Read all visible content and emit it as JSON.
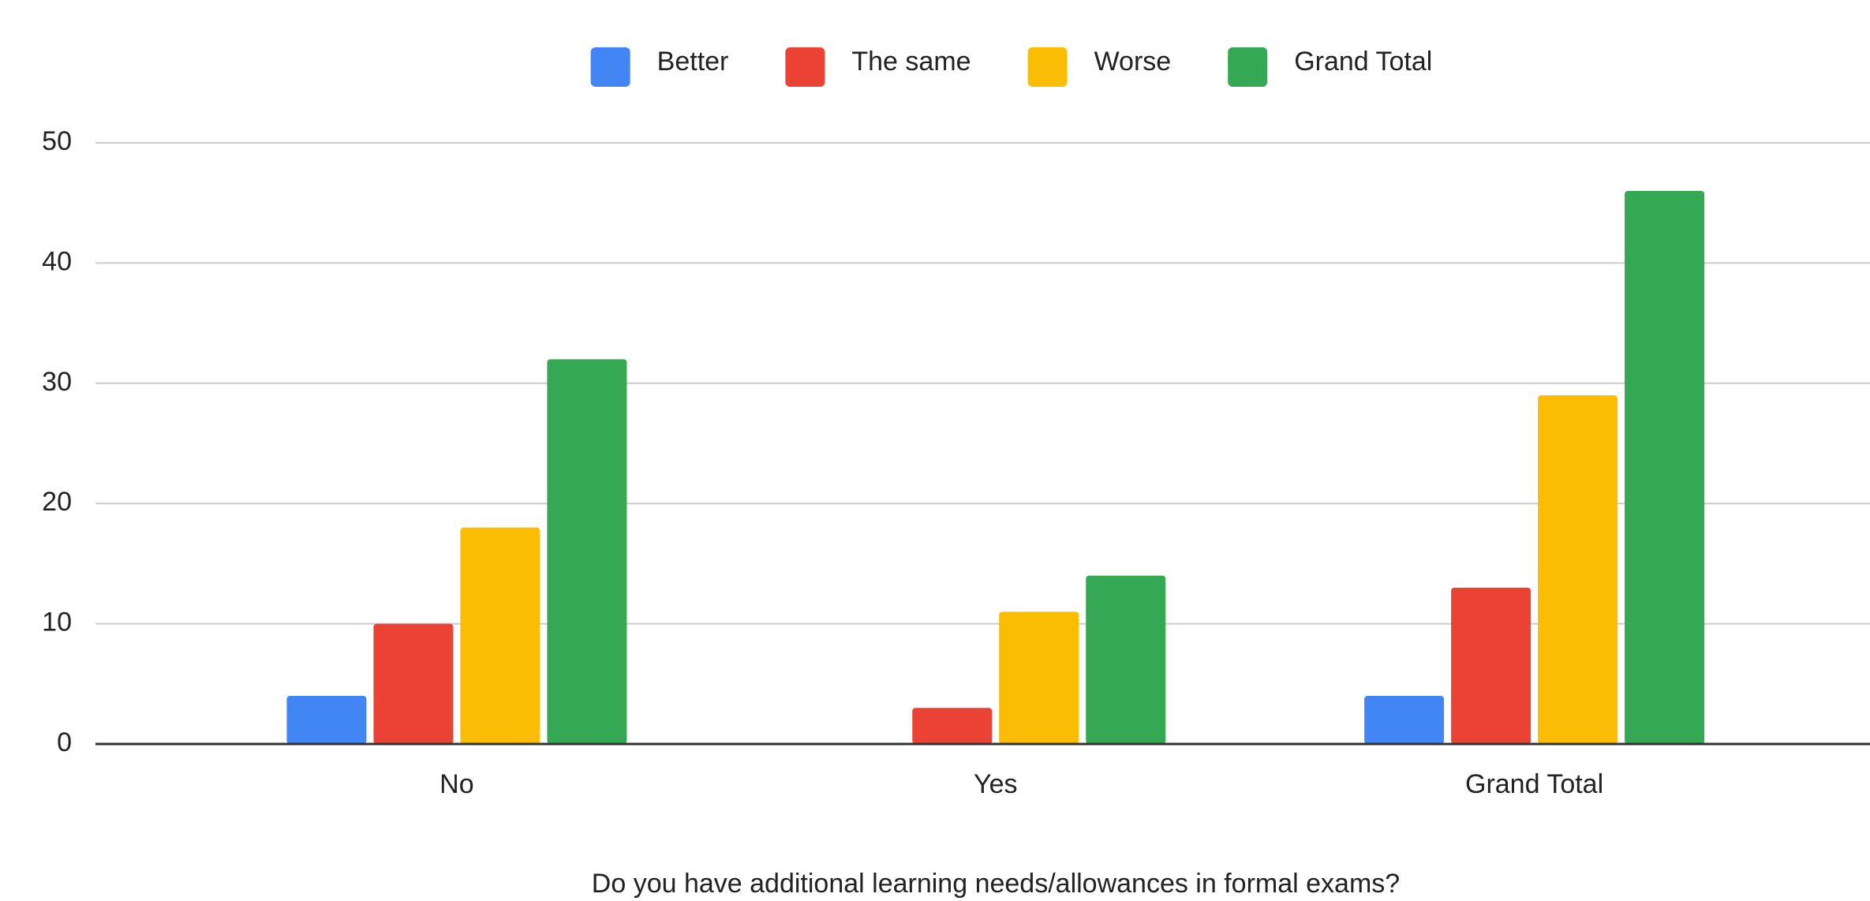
{
  "chart_data": {
    "type": "bar",
    "x_label": "Do you have additional learning needs/allowances in formal exams?",
    "categories": [
      "No",
      "Yes",
      "Grand Total"
    ],
    "series": [
      {
        "name": "Better",
        "color": "#4285f4",
        "values": [
          4,
          null,
          4
        ]
      },
      {
        "name": "The same",
        "color": "#ea4335",
        "values": [
          10,
          3,
          13
        ]
      },
      {
        "name": "Worse",
        "color": "#fbbc04",
        "values": [
          18,
          11,
          29
        ]
      },
      {
        "name": "Grand Total",
        "color": "#34a853",
        "values": [
          32,
          14,
          46
        ]
      }
    ],
    "ylim": [
      0,
      50
    ],
    "yticks": [
      0,
      10,
      20,
      30,
      40,
      50
    ],
    "grid": true,
    "legend": "top"
  }
}
